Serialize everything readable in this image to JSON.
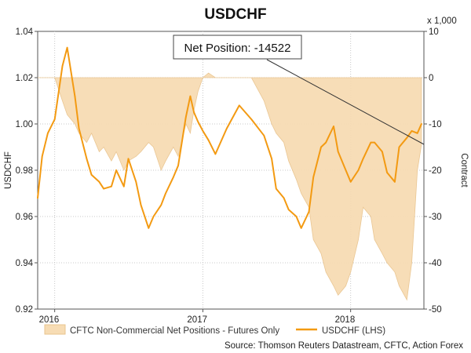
{
  "chart_data": {
    "type": "line",
    "title": "USDCHF",
    "ylabel_left": "USDCHF",
    "ylabel_right": "Contract",
    "right_multiplier": "x 1,000",
    "ylim_left": [
      0.92,
      1.04
    ],
    "ylim_right": [
      -50,
      10
    ],
    "yticks_left": [
      "1.04",
      "1.02",
      "1.00",
      "0.98",
      "0.96",
      "0.94",
      "0.92"
    ],
    "yticks_right": [
      "10",
      "0",
      "-10",
      "-20",
      "-30",
      "-40",
      "-50"
    ],
    "xticks": [
      "2016",
      "2017",
      "2018"
    ],
    "grid": true,
    "legend_position": "bottom",
    "colors": {
      "net_positions": "#f7dcb4",
      "net_positions_edge": "#e9c48e",
      "usdchf": "#f39a12",
      "annotation_line": "#333333"
    },
    "annotation": {
      "text": "Net Position: -14522",
      "value": -14.522
    },
    "series": [
      {
        "name": "CFTC Non-Commercial Net Positions - Futures Only",
        "axis": "right",
        "type": "area",
        "x": [
          "2015-11-20",
          "2015-12-01",
          "2015-12-15",
          "2016-01-01",
          "2016-01-20",
          "2016-02-01",
          "2016-02-20",
          "2016-03-01",
          "2016-03-20",
          "2016-04-01",
          "2016-04-20",
          "2016-05-01",
          "2016-05-20",
          "2016-06-01",
          "2016-06-20",
          "2016-07-01",
          "2016-07-20",
          "2016-08-01",
          "2016-08-20",
          "2016-09-01",
          "2016-09-20",
          "2016-10-01",
          "2016-10-20",
          "2016-11-01",
          "2016-11-20",
          "2016-12-01",
          "2016-12-10",
          "2016-12-20",
          "2017-01-01",
          "2017-01-15",
          "2017-02-01",
          "2017-03-01",
          "2017-04-01",
          "2017-05-01",
          "2017-06-01",
          "2017-06-20",
          "2017-07-01",
          "2017-07-20",
          "2017-08-01",
          "2017-08-20",
          "2017-09-01",
          "2017-09-20",
          "2017-10-01",
          "2017-10-20",
          "2017-11-01",
          "2017-11-20",
          "2017-12-01",
          "2017-12-20",
          "2018-01-01",
          "2018-01-20",
          "2018-02-01",
          "2018-02-20",
          "2018-03-01",
          "2018-03-20",
          "2018-04-01",
          "2018-04-20",
          "2018-05-01",
          "2018-05-20",
          "2018-06-01",
          "2018-06-15",
          "2018-06-25"
        ],
        "values": [
          0,
          0,
          0,
          0,
          -5,
          -8,
          -10,
          -12,
          -14,
          -12,
          -16,
          -15,
          -18,
          -16,
          -20,
          -18,
          -17,
          -16,
          -14,
          -15,
          -20,
          -18,
          -15,
          -17,
          -10,
          -12,
          -7,
          -3,
          0,
          1,
          0,
          0,
          0,
          0,
          -5,
          -10,
          -12,
          -14,
          -18,
          -22,
          -25,
          -28,
          -35,
          -38,
          -42,
          -45,
          -47,
          -45,
          -42,
          -35,
          -28,
          -30,
          -35,
          -38,
          -40,
          -42,
          -45,
          -48,
          -40,
          -20,
          -14.5
        ]
      },
      {
        "name": "USDCHF (LHS)",
        "axis": "left",
        "type": "line",
        "x": [
          "2015-11-20",
          "2015-12-01",
          "2015-12-15",
          "2016-01-01",
          "2016-01-20",
          "2016-02-01",
          "2016-02-20",
          "2016-03-01",
          "2016-03-20",
          "2016-04-01",
          "2016-04-20",
          "2016-05-01",
          "2016-05-20",
          "2016-06-01",
          "2016-06-20",
          "2016-07-01",
          "2016-07-20",
          "2016-08-01",
          "2016-08-20",
          "2016-09-01",
          "2016-09-20",
          "2016-10-01",
          "2016-10-20",
          "2016-11-01",
          "2016-11-20",
          "2016-12-01",
          "2016-12-10",
          "2016-12-20",
          "2017-01-01",
          "2017-01-15",
          "2017-02-01",
          "2017-03-01",
          "2017-04-01",
          "2017-05-01",
          "2017-06-01",
          "2017-06-20",
          "2017-07-01",
          "2017-07-20",
          "2017-08-01",
          "2017-08-20",
          "2017-09-01",
          "2017-09-20",
          "2017-10-01",
          "2017-10-20",
          "2017-11-01",
          "2017-11-20",
          "2017-12-01",
          "2017-12-20",
          "2018-01-01",
          "2018-01-20",
          "2018-02-01",
          "2018-02-20",
          "2018-03-01",
          "2018-03-20",
          "2018-04-01",
          "2018-04-20",
          "2018-05-01",
          "2018-05-20",
          "2018-06-01",
          "2018-06-15",
          "2018-06-25"
        ],
        "values": [
          0.968,
          0.986,
          0.996,
          1.002,
          1.025,
          1.033,
          1.012,
          0.998,
          0.985,
          0.978,
          0.975,
          0.972,
          0.973,
          0.98,
          0.973,
          0.985,
          0.975,
          0.965,
          0.955,
          0.96,
          0.965,
          0.97,
          0.977,
          0.982,
          1.003,
          1.012,
          1.005,
          1.001,
          0.997,
          0.993,
          0.987,
          0.998,
          1.008,
          1.002,
          0.995,
          0.985,
          0.972,
          0.968,
          0.963,
          0.96,
          0.955,
          0.962,
          0.977,
          0.99,
          0.992,
          0.999,
          0.988,
          0.98,
          0.975,
          0.98,
          0.985,
          0.992,
          0.992,
          0.988,
          0.979,
          0.975,
          0.99,
          0.994,
          0.997,
          0.996,
          1.0
        ]
      }
    ]
  },
  "legend": {
    "area_label": "CFTC Non-Commercial Net Positions - Futures Only",
    "line_label": "USDCHF (LHS)"
  },
  "source": "Source: Thomson Reuters Datastream, CFTC, Action Forex"
}
